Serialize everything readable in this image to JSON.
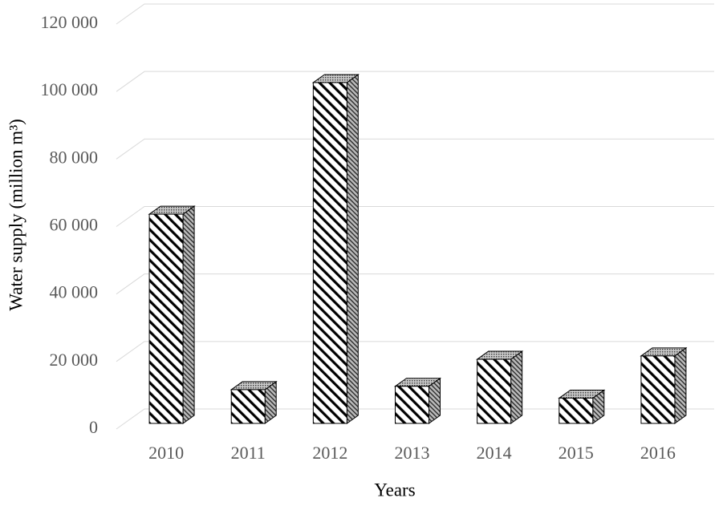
{
  "chart_data": {
    "type": "bar3d",
    "y_label": "Water supply (million m³)",
    "x_label": "Years",
    "categories": [
      "2010",
      "2011",
      "2012",
      "2013",
      "2014",
      "2015",
      "2016"
    ],
    "values": [
      62000,
      10000,
      101000,
      11000,
      19000,
      7500,
      20000
    ],
    "ylim": [
      0,
      120000
    ],
    "yticks": [
      0,
      {
        "value": 20000,
        "label": "20 000"
      },
      {
        "value": 40000,
        "label": "40 000"
      },
      {
        "value": 60000,
        "label": "60 000"
      },
      {
        "value": 80000,
        "label": "80 000"
      },
      {
        "value": 100000,
        "label": "100 000"
      },
      {
        "value": 120000,
        "label": "120 000"
      }
    ],
    "grid": true
  }
}
